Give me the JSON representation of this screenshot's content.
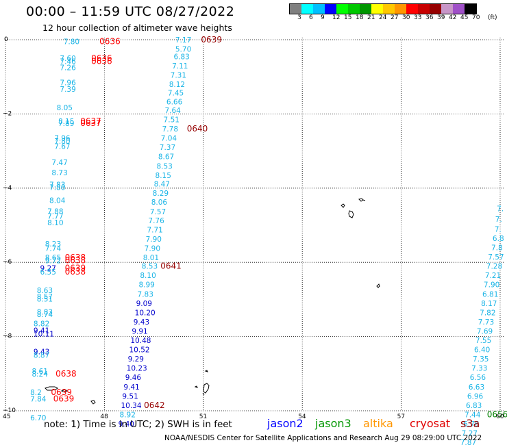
{
  "header": {
    "title": "00:00 – 11:59 UTC 08/27/2022",
    "subtitle": "12 hour collection of altimeter wave heights"
  },
  "colorbar": {
    "labels": [
      "3",
      "6",
      "9",
      "12",
      "15",
      "18",
      "21",
      "24",
      "27",
      "30",
      "33",
      "36",
      "39",
      "42",
      "45",
      "70"
    ],
    "unit": "(ft)",
    "colors": [
      "#7f7f7f",
      "#00ffff",
      "#00bfff",
      "#0000ff",
      "#00ff00",
      "#00c800",
      "#009600",
      "#ffff00",
      "#ffc800",
      "#ff9600",
      "#ff0000",
      "#c80000",
      "#960000",
      "#c896c8",
      "#a050c8",
      "#000000"
    ]
  },
  "axes": {
    "x_ticks": [
      "45",
      "48",
      "51",
      "54",
      "57",
      "60"
    ],
    "y_ticks": [
      "0",
      "−2",
      "−4",
      "−6",
      "−8",
      "−10"
    ]
  },
  "footer": {
    "note": "note:  1) Time is in UTC; 2) SWH is in feet",
    "sat_jason2": "jason2",
    "sat_jason3": "jason3",
    "sat_altika": "altika",
    "sat_cryosat": "cryosat",
    "sat_s3a": "s3a",
    "credit": "NOAA/NESDIS Center for Satellite Applications and Research    Aug 29 08:29:00 UTC 2022"
  },
  "colors": {
    "cyan": "#19b4e6",
    "blue": "#0000cc",
    "red": "#ff0000",
    "darkred": "#960000",
    "green": "#008000",
    "orange": "#ff9600",
    "jason2": "#0000ff",
    "jason3": "#009600",
    "altika": "#ff9600",
    "cryosat": "#e00000",
    "s3a": "#960000"
  },
  "labels": [
    {
      "t": "7.80",
      "c": "cyan",
      "lon": 46.76,
      "lat": -0.05
    },
    {
      "t": "0636",
      "c": "red",
      "lon": 47.85,
      "lat": -0.05
    },
    {
      "t": "7.60",
      "c": "cyan",
      "lon": 46.65,
      "lat": -0.5
    },
    {
      "t": "0636",
      "c": "red",
      "lon": 47.6,
      "lat": -0.5
    },
    {
      "t": "7.46",
      "c": "cyan",
      "lon": 46.65,
      "lat": -0.58
    },
    {
      "t": "0636",
      "c": "red",
      "lon": 47.6,
      "lat": -0.58
    },
    {
      "t": "7.26",
      "c": "cyan",
      "lon": 46.65,
      "lat": -0.75
    },
    {
      "t": "7.96",
      "c": "cyan",
      "lon": 46.65,
      "lat": -1.15
    },
    {
      "t": "7.39",
      "c": "cyan",
      "lon": 46.65,
      "lat": -1.33
    },
    {
      "t": "8.05",
      "c": "cyan",
      "lon": 46.55,
      "lat": -1.83
    },
    {
      "t": "8.15",
      "c": "cyan",
      "lon": 46.6,
      "lat": -2.2
    },
    {
      "t": "7.89",
      "c": "cyan",
      "lon": 46.6,
      "lat": -2.25
    },
    {
      "t": "0637",
      "c": "red",
      "lon": 47.27,
      "lat": -2.2
    },
    {
      "t": "0637",
      "c": "red",
      "lon": 47.27,
      "lat": -2.25
    },
    {
      "t": "7.96",
      "c": "cyan",
      "lon": 46.48,
      "lat": -2.65
    },
    {
      "t": "7.80",
      "c": "cyan",
      "lon": 46.48,
      "lat": -2.73
    },
    {
      "t": "7.67",
      "c": "cyan",
      "lon": 46.48,
      "lat": -2.87
    },
    {
      "t": "7.47",
      "c": "cyan",
      "lon": 46.4,
      "lat": -3.3
    },
    {
      "t": "8.73",
      "c": "cyan",
      "lon": 46.4,
      "lat": -3.58
    },
    {
      "t": "7.83",
      "c": "cyan",
      "lon": 46.33,
      "lat": -3.9
    },
    {
      "t": "7.80",
      "c": "cyan",
      "lon": 46.33,
      "lat": -3.98
    },
    {
      "t": "8.04",
      "c": "cyan",
      "lon": 46.33,
      "lat": -4.33
    },
    {
      "t": "7.88",
      "c": "cyan",
      "lon": 46.27,
      "lat": -4.62
    },
    {
      "t": "7.77",
      "c": "cyan",
      "lon": 46.27,
      "lat": -4.75
    },
    {
      "t": "8.10",
      "c": "cyan",
      "lon": 46.27,
      "lat": -4.93
    },
    {
      "t": "8.23",
      "c": "cyan",
      "lon": 46.2,
      "lat": -5.5
    },
    {
      "t": "7.74",
      "c": "cyan",
      "lon": 46.2,
      "lat": -5.62
    },
    {
      "t": "8.65",
      "c": "cyan",
      "lon": 46.2,
      "lat": -5.87
    },
    {
      "t": "9.72",
      "c": "cyan",
      "lon": 46.2,
      "lat": -5.95
    },
    {
      "t": "0638",
      "c": "red",
      "lon": 46.8,
      "lat": -5.87
    },
    {
      "t": "0638",
      "c": "red",
      "lon": 46.8,
      "lat": -5.95
    },
    {
      "t": "9.27",
      "c": "blue",
      "lon": 46.05,
      "lat": -6.15
    },
    {
      "t": "6.55",
      "c": "cyan",
      "lon": 46.05,
      "lat": -6.25
    },
    {
      "t": "0639",
      "c": "red",
      "lon": 46.8,
      "lat": -6.15
    },
    {
      "t": "0638",
      "c": "red",
      "lon": 46.8,
      "lat": -6.25
    },
    {
      "t": "8.63",
      "c": "cyan",
      "lon": 45.95,
      "lat": -6.75
    },
    {
      "t": "8.57",
      "c": "cyan",
      "lon": 45.95,
      "lat": -6.92
    },
    {
      "t": "8.51",
      "c": "cyan",
      "lon": 45.95,
      "lat": -6.98
    },
    {
      "t": "8.83",
      "c": "cyan",
      "lon": 45.95,
      "lat": -7.33
    },
    {
      "t": "8.74",
      "c": "cyan",
      "lon": 45.95,
      "lat": -7.4
    },
    {
      "t": "8.82",
      "c": "cyan",
      "lon": 45.85,
      "lat": -7.65
    },
    {
      "t": "9.41",
      "c": "blue",
      "lon": 45.85,
      "lat": -7.83
    },
    {
      "t": "10.11",
      "c": "blue",
      "lon": 45.85,
      "lat": -7.92
    },
    {
      "t": "9.43",
      "c": "blue",
      "lon": 45.85,
      "lat": -8.4
    },
    {
      "t": "8.87",
      "c": "cyan",
      "lon": 45.85,
      "lat": -8.5
    },
    {
      "t": "8.61",
      "c": "cyan",
      "lon": 45.8,
      "lat": -8.93
    },
    {
      "t": "8.24",
      "c": "cyan",
      "lon": 45.8,
      "lat": -9.0
    },
    {
      "t": "0638",
      "c": "red",
      "lon": 46.52,
      "lat": -9.0
    },
    {
      "t": "8.2",
      "c": "cyan",
      "lon": 45.75,
      "lat": -9.5
    },
    {
      "t": "0639",
      "c": "red",
      "lon": 46.38,
      "lat": -9.5
    },
    {
      "t": "7.84",
      "c": "cyan",
      "lon": 45.75,
      "lat": -9.68
    },
    {
      "t": "0639",
      "c": "red",
      "lon": 46.45,
      "lat": -9.68
    },
    {
      "t": "6.70",
      "c": "cyan",
      "lon": 45.75,
      "lat": -10.18
    },
    {
      "t": "7.17",
      "c": "cyan",
      "lon": 50.15,
      "lat": 0.0
    },
    {
      "t": "0639",
      "c": "darkred",
      "lon": 50.93,
      "lat": 0.0
    },
    {
      "t": "5.70",
      "c": "cyan",
      "lon": 50.15,
      "lat": -0.25
    },
    {
      "t": "6.83",
      "c": "cyan",
      "lon": 50.1,
      "lat": -0.45
    },
    {
      "t": "7.11",
      "c": "cyan",
      "lon": 50.05,
      "lat": -0.7
    },
    {
      "t": "7.31",
      "c": "cyan",
      "lon": 50.0,
      "lat": -0.95
    },
    {
      "t": "8.12",
      "c": "cyan",
      "lon": 49.96,
      "lat": -1.2
    },
    {
      "t": "7.45",
      "c": "cyan",
      "lon": 49.92,
      "lat": -1.43
    },
    {
      "t": "6.66",
      "c": "cyan",
      "lon": 49.88,
      "lat": -1.67
    },
    {
      "t": "7.64",
      "c": "cyan",
      "lon": 49.83,
      "lat": -1.9
    },
    {
      "t": "7.51",
      "c": "cyan",
      "lon": 49.79,
      "lat": -2.15
    },
    {
      "t": "7.78",
      "c": "cyan",
      "lon": 49.75,
      "lat": -2.4
    },
    {
      "t": "0640",
      "c": "darkred",
      "lon": 50.5,
      "lat": -2.4
    },
    {
      "t": "7.04",
      "c": "cyan",
      "lon": 49.71,
      "lat": -2.65
    },
    {
      "t": "7.37",
      "c": "cyan",
      "lon": 49.67,
      "lat": -2.9
    },
    {
      "t": "8.67",
      "c": "cyan",
      "lon": 49.63,
      "lat": -3.15
    },
    {
      "t": "8.53",
      "c": "cyan",
      "lon": 49.58,
      "lat": -3.4
    },
    {
      "t": "8.15",
      "c": "cyan",
      "lon": 49.54,
      "lat": -3.65
    },
    {
      "t": "8.47",
      "c": "cyan",
      "lon": 49.5,
      "lat": -3.88
    },
    {
      "t": "8.29",
      "c": "cyan",
      "lon": 49.46,
      "lat": -4.13
    },
    {
      "t": "8.06",
      "c": "cyan",
      "lon": 49.42,
      "lat": -4.37
    },
    {
      "t": "7.57",
      "c": "cyan",
      "lon": 49.38,
      "lat": -4.63
    },
    {
      "t": "7.76",
      "c": "cyan",
      "lon": 49.33,
      "lat": -4.87
    },
    {
      "t": "7.71",
      "c": "cyan",
      "lon": 49.29,
      "lat": -5.12
    },
    {
      "t": "7.90",
      "c": "cyan",
      "lon": 49.25,
      "lat": -5.37
    },
    {
      "t": "7.90",
      "c": "cyan",
      "lon": 49.21,
      "lat": -5.62
    },
    {
      "t": "8.01",
      "c": "cyan",
      "lon": 49.17,
      "lat": -5.87
    },
    {
      "t": "8.53",
      "c": "cyan",
      "lon": 49.13,
      "lat": -6.1
    },
    {
      "t": "0641",
      "c": "darkred",
      "lon": 49.7,
      "lat": -6.1
    },
    {
      "t": "8.10",
      "c": "cyan",
      "lon": 49.08,
      "lat": -6.35
    },
    {
      "t": "8.99",
      "c": "cyan",
      "lon": 49.04,
      "lat": -6.6
    },
    {
      "t": "7.83",
      "c": "cyan",
      "lon": 49.0,
      "lat": -6.85
    },
    {
      "t": "9.09",
      "c": "blue",
      "lon": 48.96,
      "lat": -7.1
    },
    {
      "t": "10.20",
      "c": "blue",
      "lon": 48.92,
      "lat": -7.35
    },
    {
      "t": "9.43",
      "c": "blue",
      "lon": 48.88,
      "lat": -7.6
    },
    {
      "t": "9.91",
      "c": "blue",
      "lon": 48.83,
      "lat": -7.85
    },
    {
      "t": "10.48",
      "c": "blue",
      "lon": 48.79,
      "lat": -8.1
    },
    {
      "t": "10.52",
      "c": "blue",
      "lon": 48.75,
      "lat": -8.35
    },
    {
      "t": "9.29",
      "c": "blue",
      "lon": 48.71,
      "lat": -8.6
    },
    {
      "t": "10.23",
      "c": "blue",
      "lon": 48.67,
      "lat": -8.85
    },
    {
      "t": "9.46",
      "c": "blue",
      "lon": 48.63,
      "lat": -9.1
    },
    {
      "t": "9.41",
      "c": "blue",
      "lon": 48.58,
      "lat": -9.35
    },
    {
      "t": "9.51",
      "c": "blue",
      "lon": 48.54,
      "lat": -9.6
    },
    {
      "t": "10.34",
      "c": "blue",
      "lon": 48.5,
      "lat": -9.85
    },
    {
      "t": "0642",
      "c": "darkred",
      "lon": 49.2,
      "lat": -9.85
    },
    {
      "t": "8.92",
      "c": "cyan",
      "lon": 48.46,
      "lat": -10.1
    },
    {
      "t": "9.40",
      "c": "blue",
      "lon": 48.42,
      "lat": -10.35
    },
    {
      "t": "7.",
      "c": "cyan",
      "lon": 59.9,
      "lat": -4.55
    },
    {
      "t": "7.",
      "c": "cyan",
      "lon": 59.85,
      "lat": -4.83
    },
    {
      "t": "7.",
      "c": "cyan",
      "lon": 59.83,
      "lat": -5.1
    },
    {
      "t": "6.8",
      "c": "cyan",
      "lon": 59.77,
      "lat": -5.35
    },
    {
      "t": "7.8",
      "c": "cyan",
      "lon": 59.73,
      "lat": -5.6
    },
    {
      "t": "7.57",
      "c": "cyan",
      "lon": 59.63,
      "lat": -5.85
    },
    {
      "t": "7.28",
      "c": "cyan",
      "lon": 59.58,
      "lat": -6.1
    },
    {
      "t": "7.21",
      "c": "cyan",
      "lon": 59.54,
      "lat": -6.35
    },
    {
      "t": "7.90",
      "c": "cyan",
      "lon": 59.5,
      "lat": -6.6
    },
    {
      "t": "6.81",
      "c": "cyan",
      "lon": 59.46,
      "lat": -6.85
    },
    {
      "t": "8.17",
      "c": "cyan",
      "lon": 59.42,
      "lat": -7.1
    },
    {
      "t": "7.82",
      "c": "cyan",
      "lon": 59.38,
      "lat": -7.35
    },
    {
      "t": "7.73",
      "c": "cyan",
      "lon": 59.33,
      "lat": -7.6
    },
    {
      "t": "7.69",
      "c": "cyan",
      "lon": 59.29,
      "lat": -7.85
    },
    {
      "t": "7.55",
      "c": "cyan",
      "lon": 59.25,
      "lat": -8.1
    },
    {
      "t": "6.40",
      "c": "cyan",
      "lon": 59.21,
      "lat": -8.35
    },
    {
      "t": "7.35",
      "c": "cyan",
      "lon": 59.17,
      "lat": -8.6
    },
    {
      "t": "7.33",
      "c": "cyan",
      "lon": 59.13,
      "lat": -8.85
    },
    {
      "t": "6.56",
      "c": "cyan",
      "lon": 59.08,
      "lat": -9.1
    },
    {
      "t": "6.63",
      "c": "cyan",
      "lon": 59.04,
      "lat": -9.35
    },
    {
      "t": "6.96",
      "c": "cyan",
      "lon": 59.0,
      "lat": -9.6
    },
    {
      "t": "6.83",
      "c": "cyan",
      "lon": 58.96,
      "lat": -9.85
    },
    {
      "t": "7.44",
      "c": "cyan",
      "lon": 58.92,
      "lat": -10.1
    },
    {
      "t": "0656",
      "c": "green",
      "lon": 59.6,
      "lat": -10.1
    },
    {
      "t": "6.76",
      "c": "cyan",
      "lon": 58.88,
      "lat": -10.35
    },
    {
      "t": "7.27",
      "c": "cyan",
      "lon": 58.83,
      "lat": -10.6
    },
    {
      "t": "7.87",
      "c": "cyan",
      "lon": 58.79,
      "lat": -10.85
    },
    {
      "t": "6.75",
      "c": "cyan",
      "lon": 58.75,
      "lat": -11.1
    },
    {
      "t": "0655",
      "c": "green",
      "lon": 59.38,
      "lat": -11.1
    }
  ]
}
